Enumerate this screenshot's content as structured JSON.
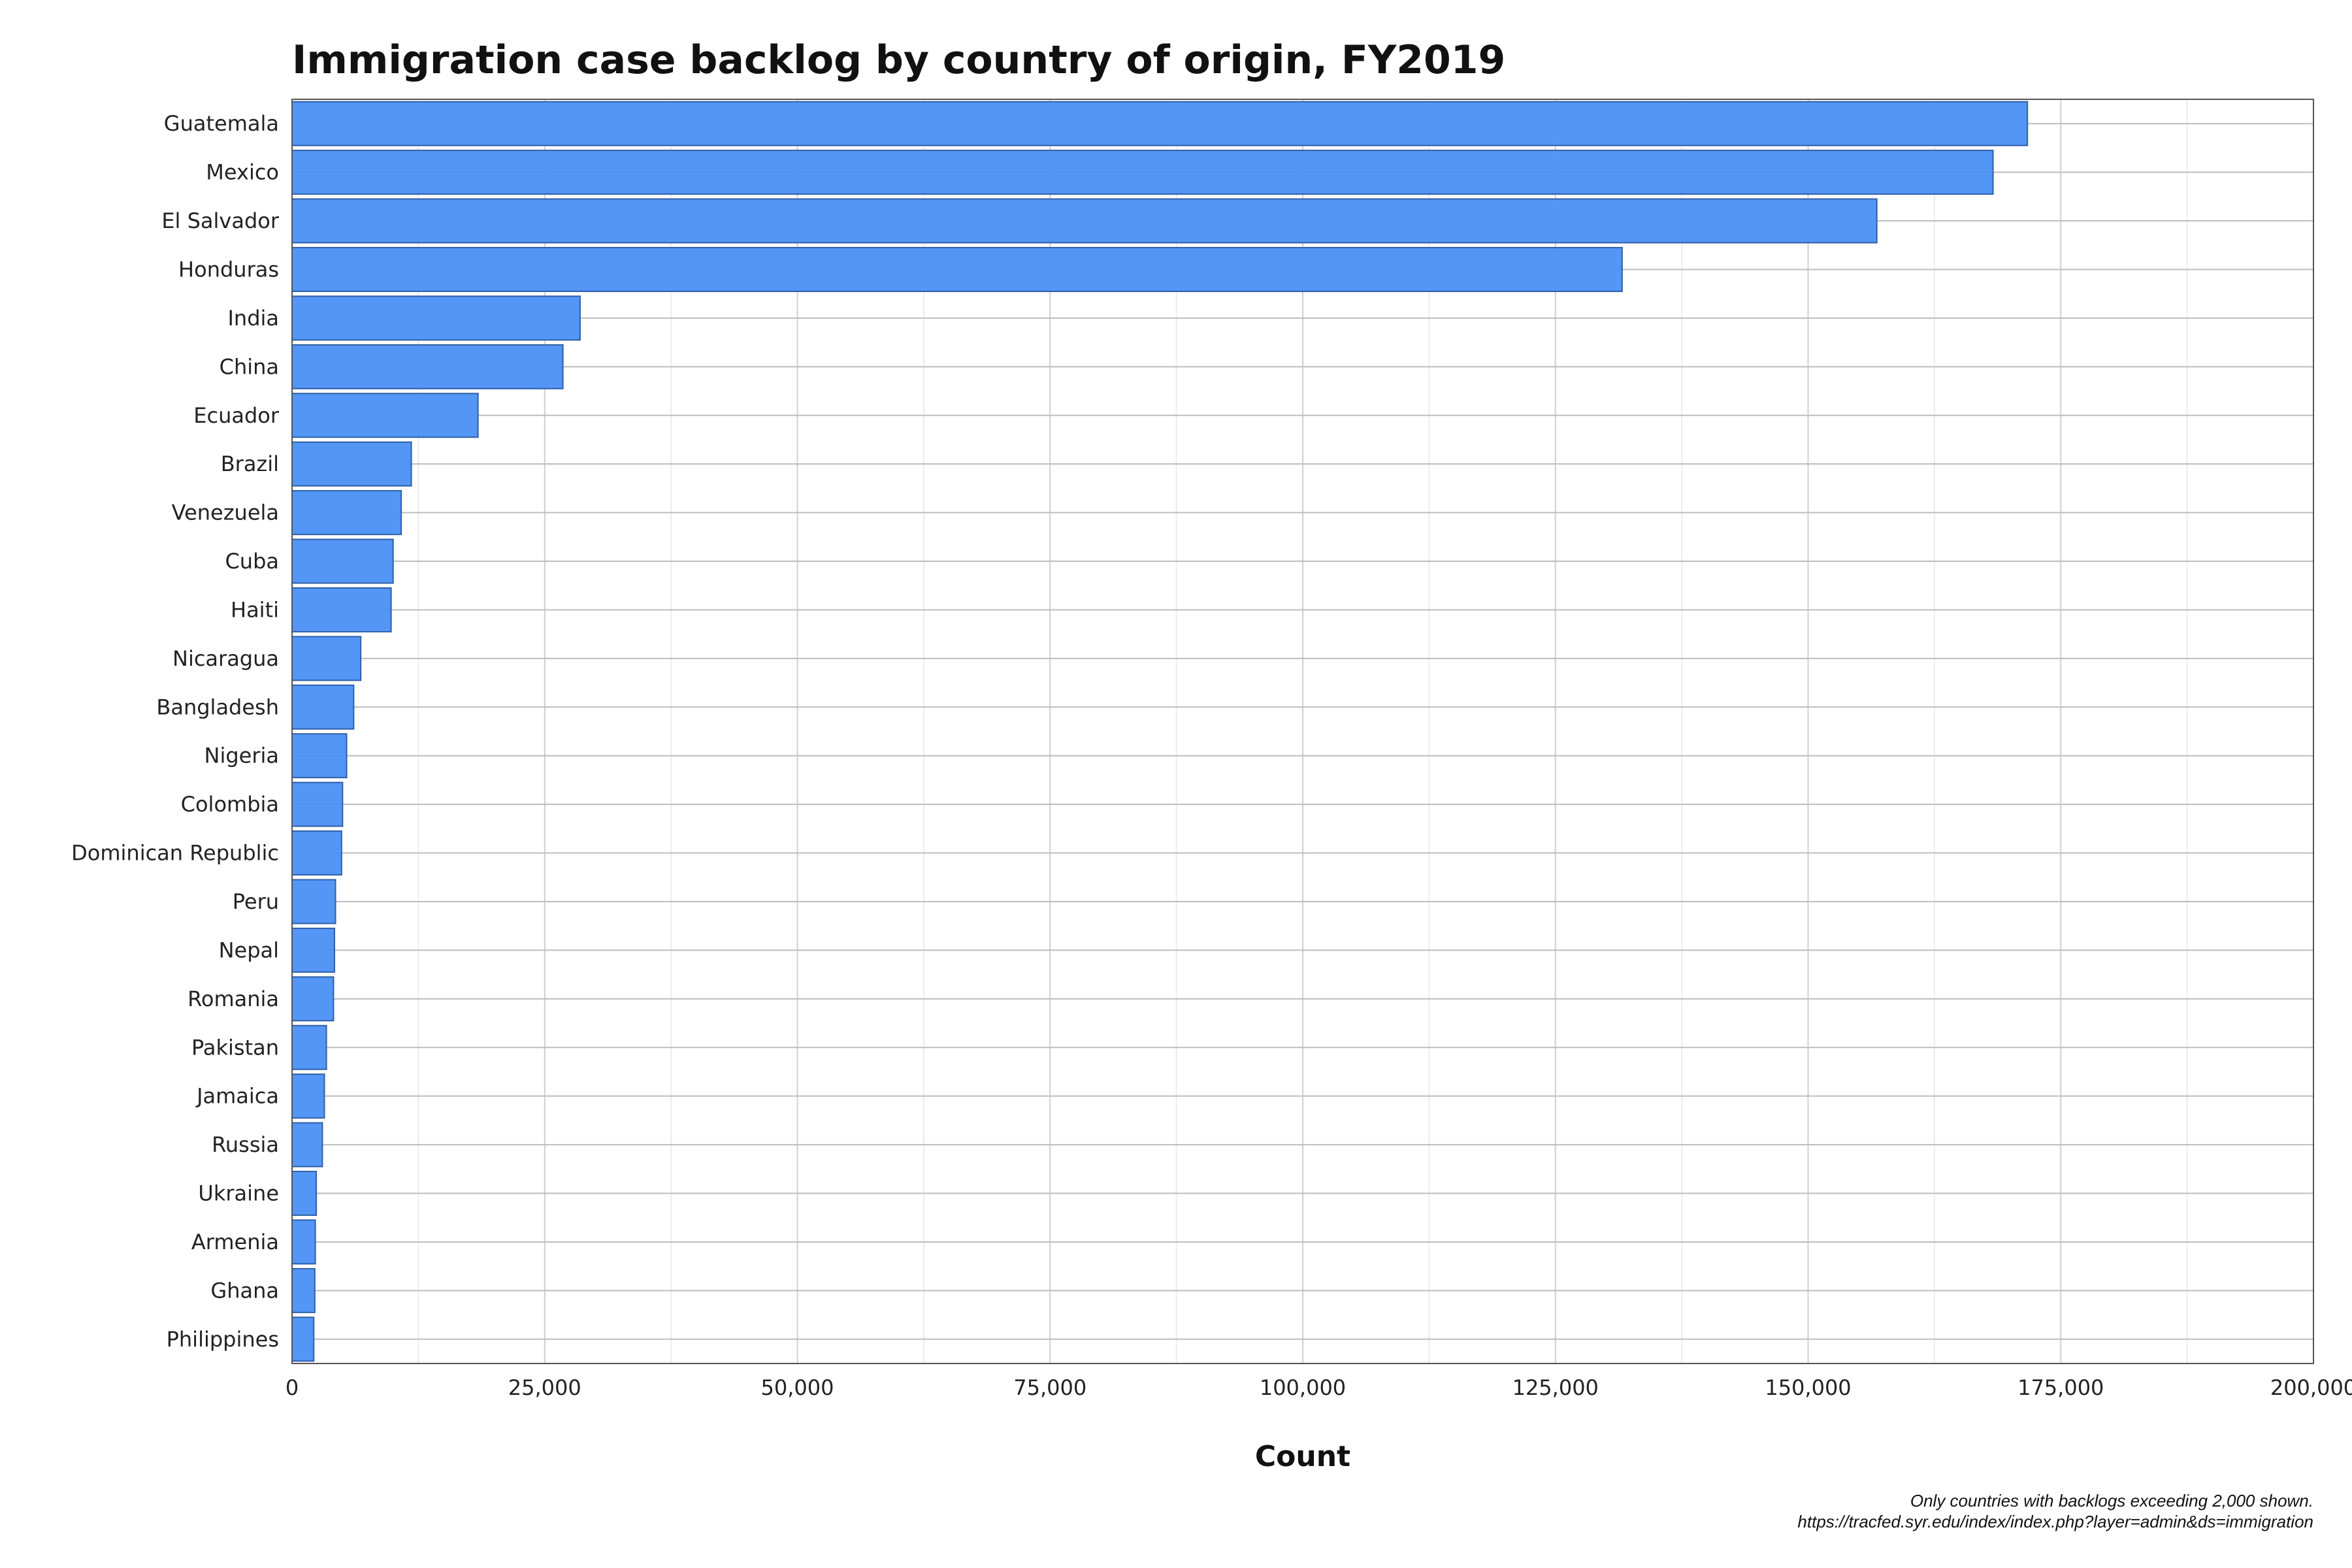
{
  "chart_data": {
    "type": "bar",
    "orientation": "horizontal",
    "title": "Immigration case backlog by country of origin, FY2019",
    "xlabel": "Count",
    "ylabel": "",
    "xlim": [
      0,
      200000
    ],
    "xticks": [
      0,
      25000,
      50000,
      75000,
      100000,
      125000,
      150000,
      175000,
      200000
    ],
    "xtick_labels": [
      "0",
      "25,000",
      "50,000",
      "75,000",
      "100,000",
      "125,000",
      "150,000",
      "175,000",
      "200,000"
    ],
    "grid": true,
    "bar_color": "#4a90f5",
    "categories": [
      "Guatemala",
      "Mexico",
      "El Salvador",
      "Honduras",
      "India",
      "China",
      "Ecuador",
      "Brazil",
      "Venezuela",
      "Cuba",
      "Haiti",
      "Nicaragua",
      "Bangladesh",
      "Nigeria",
      "Colombia",
      "Dominican Republic",
      "Peru",
      "Nepal",
      "Romania",
      "Pakistan",
      "Jamaica",
      "Russia",
      "Ukraine",
      "Armenia",
      "Ghana",
      "Philippines"
    ],
    "values": [
      171700,
      168300,
      156800,
      131600,
      28500,
      26800,
      18400,
      11800,
      10800,
      10000,
      9800,
      6800,
      6100,
      5400,
      5000,
      4900,
      4300,
      4200,
      4100,
      3400,
      3200,
      3000,
      2400,
      2300,
      2250,
      2150
    ],
    "caption_lines": [
      "Only countries with backlogs exceeding 2,000 shown.",
      "https://tracfed.syr.edu/index/index.php?layer=admin&ds=immigration"
    ]
  }
}
